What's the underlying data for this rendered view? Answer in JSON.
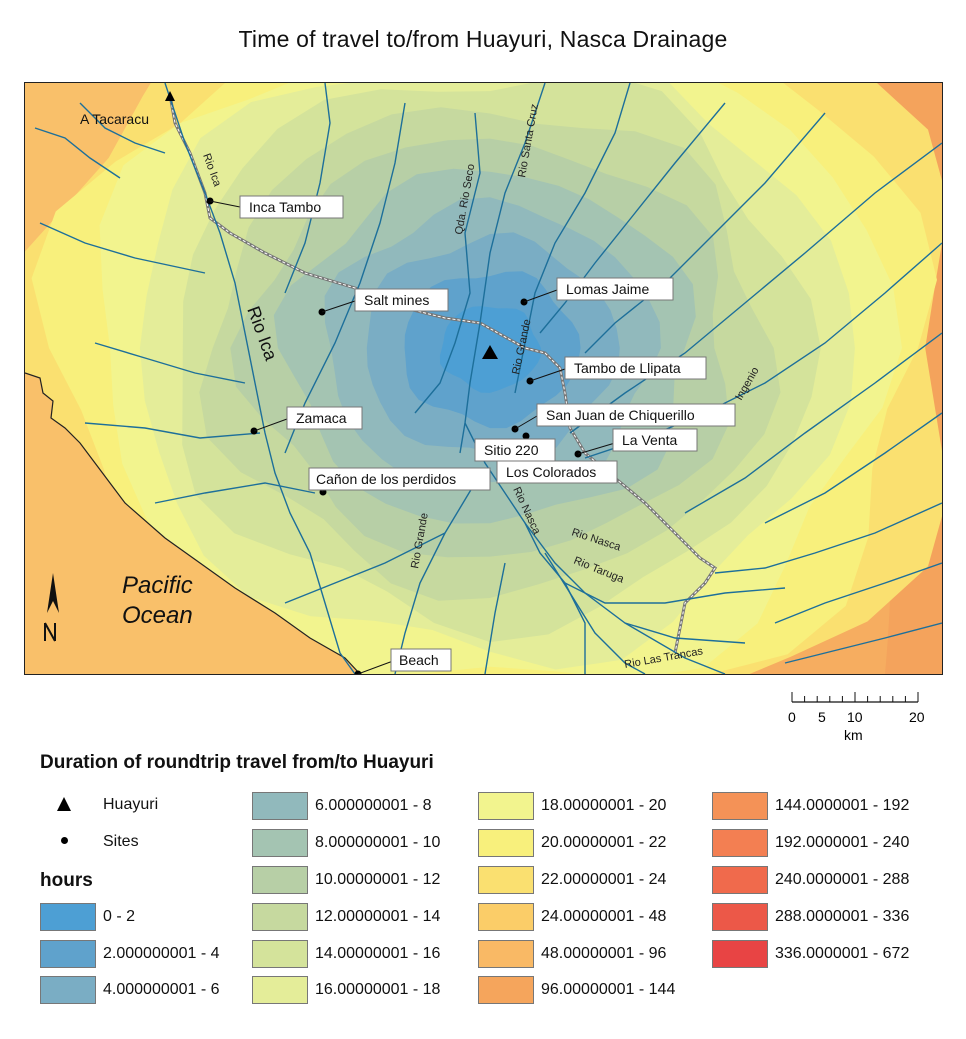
{
  "title": "Time of travel to/from Huayuri, Nasca Drainage",
  "map": {
    "origin_label": "A Tacaracu",
    "sites": [
      {
        "name": "Inca Tambo"
      },
      {
        "name": "Salt mines"
      },
      {
        "name": "Lomas Jaime"
      },
      {
        "name": "Tambo de Llipata"
      },
      {
        "name": "San Juan de Chiquerillo"
      },
      {
        "name": "Sitio 220"
      },
      {
        "name": "La Venta"
      },
      {
        "name": "Los Colorados"
      },
      {
        "name": "Zamaca"
      },
      {
        "name": "Cañon de los perdidos"
      },
      {
        "name": "Beach"
      }
    ],
    "rivers": {
      "rio_ica_small": "Rio Ica",
      "rio_ica_big": "Rio Ica",
      "qda_rio_seco": "Qda. Rio Seco",
      "rio_santa_cruz": "Rio Santa Cruz",
      "rio_grande_upper": "Rio Grande",
      "rio_grande_lower": "Rio Grande",
      "ingenio": "Ingenio",
      "rio_nasca_1": "Rio Nasca",
      "rio_nasca_2": "Rio Nasca",
      "rio_taruga": "Rio Taruga",
      "rio_las_trancas": "Rio Las Trancas"
    },
    "ocean_line1": "Pacific",
    "ocean_line2": "Ocean"
  },
  "scale": {
    "ticks": [
      "0",
      "5",
      "10",
      "20"
    ],
    "unit": "km"
  },
  "legend": {
    "title": "Duration of roundtrip travel from/to Huayuri",
    "symbol_huayuri": "Huayuri",
    "symbol_sites": "Sites",
    "hours_title": "hours",
    "classes": [
      {
        "label": "0 - 2",
        "color": "#4d9fd4"
      },
      {
        "label": "2.000000001 - 4",
        "color": "#5fa2cc"
      },
      {
        "label": "4.000000001 - 6",
        "color": "#7aadc4"
      },
      {
        "label": "6.000000001 - 8",
        "color": "#91b9bc"
      },
      {
        "label": "8.000000001 - 10",
        "color": "#a4c4b2"
      },
      {
        "label": "10.00000001 - 12",
        "color": "#b7cfa6"
      },
      {
        "label": "12.00000001 - 14",
        "color": "#c6d99f"
      },
      {
        "label": "14.00000001 - 16",
        "color": "#d4e39b"
      },
      {
        "label": "16.00000001 - 18",
        "color": "#e4ed99"
      },
      {
        "label": "18.00000001 - 20",
        "color": "#f2f48e"
      },
      {
        "label": "20.00000001 - 22",
        "color": "#f8f07c"
      },
      {
        "label": "22.00000001 - 24",
        "color": "#fae070"
      },
      {
        "label": "24.00000001 - 48",
        "color": "#fbcd68"
      },
      {
        "label": "48.00000001 - 96",
        "color": "#f9b965"
      },
      {
        "label": "96.00000001 - 144",
        "color": "#f5a55c"
      },
      {
        "label": "144.0000001 - 192",
        "color": "#f49257"
      },
      {
        "label": "192.0000001 - 240",
        "color": "#f37f52"
      },
      {
        "label": "240.0000001 - 288",
        "color": "#f06a4c"
      },
      {
        "label": "288.0000001 - 336",
        "color": "#ec5848"
      },
      {
        "label": "336.0000001 - 672",
        "color": "#e84444"
      }
    ]
  }
}
